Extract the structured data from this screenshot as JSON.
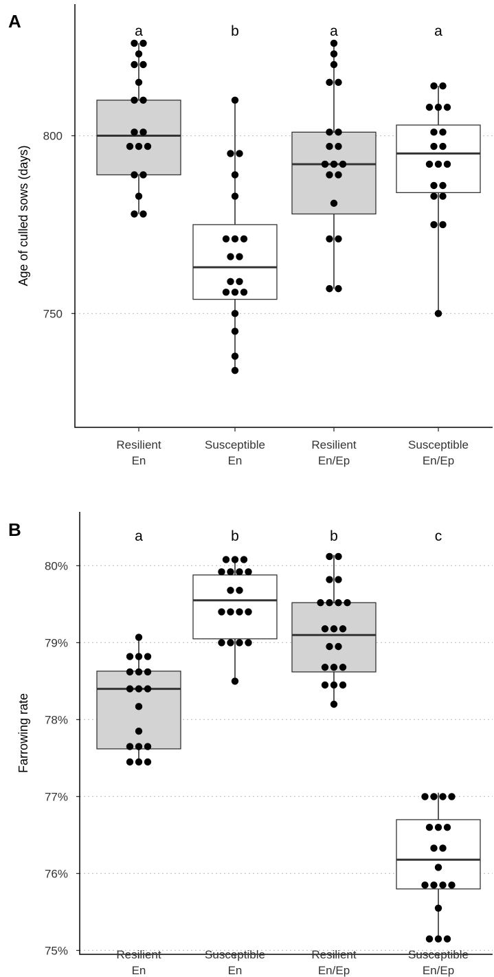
{
  "chart_data": [
    {
      "type": "box",
      "panel": "A",
      "ylabel": "Age of culled sows (days)",
      "ylim": [
        718,
        837
      ],
      "yticks": [
        750,
        800
      ],
      "ytick_labels": [
        "750",
        "800"
      ],
      "categories": [
        "Resilient\nEn",
        "Susceptible\nEn",
        "Resilient\nEn/Ep",
        "Susceptible\nEn/Ep"
      ],
      "significance": [
        "a",
        "b",
        "a",
        "a"
      ],
      "box_fill": [
        "#d3d3d3",
        "#ffffff",
        "#d3d3d3",
        "#ffffff"
      ],
      "boxes": [
        {
          "q1": 789,
          "median": 800,
          "q3": 810,
          "whisker_low": 778,
          "whisker_high": 826
        },
        {
          "q1": 754,
          "median": 763,
          "q3": 775,
          "whisker_low": 734,
          "whisker_high": 810
        },
        {
          "q1": 778,
          "median": 792,
          "q3": 801,
          "whisker_low": 757,
          "whisker_high": 826
        },
        {
          "q1": 784,
          "median": 795,
          "q3": 803,
          "whisker_low": 750,
          "whisker_high": 814
        }
      ],
      "points": [
        [
          826,
          826,
          823,
          820,
          820,
          815,
          810,
          810,
          801,
          801,
          797,
          797,
          797,
          789,
          789,
          783,
          778,
          778
        ],
        [
          810,
          795,
          795,
          789,
          783,
          771,
          771,
          771,
          766,
          766,
          759,
          759,
          756,
          756,
          756,
          750,
          745,
          738,
          734
        ],
        [
          826,
          823,
          820,
          815,
          815,
          801,
          801,
          797,
          797,
          792,
          792,
          792,
          789,
          789,
          781,
          771,
          771,
          757,
          757
        ],
        [
          814,
          814,
          808,
          808,
          808,
          801,
          801,
          797,
          797,
          792,
          792,
          792,
          786,
          786,
          783,
          783,
          775,
          775,
          750
        ]
      ]
    },
    {
      "type": "box",
      "panel": "B",
      "ylabel": "Farrowing rate",
      "ylim": [
        74.95,
        80.7
      ],
      "yticks": [
        75,
        76,
        77,
        78,
        79,
        80
      ],
      "ytick_labels": [
        "75%",
        "76%",
        "77%",
        "78%",
        "79%",
        "80%"
      ],
      "categories": [
        "Resilient\nEn",
        "Susceptible\nEn",
        "Resilient\nEn/Ep",
        "Susceptible\nEn/Ep"
      ],
      "significance": [
        "a",
        "b",
        "b",
        "c"
      ],
      "box_fill": [
        "#d3d3d3",
        "#ffffff",
        "#d3d3d3",
        "#ffffff"
      ],
      "boxes": [
        {
          "q1": 77.62,
          "median": 78.4,
          "q3": 78.63,
          "whisker_low": 77.45,
          "whisker_high": 79.1
        },
        {
          "q1": 79.05,
          "median": 79.55,
          "q3": 79.88,
          "whisker_low": 78.5,
          "whisker_high": 80.12
        },
        {
          "q1": 78.62,
          "median": 79.1,
          "q3": 79.52,
          "whisker_low": 78.2,
          "whisker_high": 80.14
        },
        {
          "q1": 75.8,
          "median": 76.18,
          "q3": 76.7,
          "whisker_low": 75.15,
          "whisker_high": 77.05
        }
      ],
      "points": [
        [
          79.07,
          78.82,
          78.82,
          78.82,
          78.62,
          78.62,
          78.62,
          78.4,
          78.4,
          78.4,
          78.17,
          77.85,
          77.65,
          77.65,
          77.65,
          77.45,
          77.45,
          77.45
        ],
        [
          80.08,
          80.08,
          80.08,
          79.92,
          79.92,
          79.92,
          79.92,
          79.68,
          79.68,
          79.4,
          79.4,
          79.4,
          79.4,
          79.0,
          79.0,
          79.0,
          79.0,
          78.5
        ],
        [
          80.12,
          80.12,
          79.82,
          79.82,
          79.52,
          79.52,
          79.52,
          79.52,
          79.18,
          79.18,
          79.18,
          78.95,
          78.95,
          78.68,
          78.68,
          78.68,
          78.45,
          78.45,
          78.45,
          78.2
        ],
        [
          77.0,
          77.0,
          77.0,
          77.0,
          76.6,
          76.6,
          76.6,
          76.33,
          76.33,
          76.08,
          75.85,
          75.85,
          75.85,
          75.85,
          75.55,
          75.15,
          75.15,
          75.15
        ]
      ]
    }
  ]
}
